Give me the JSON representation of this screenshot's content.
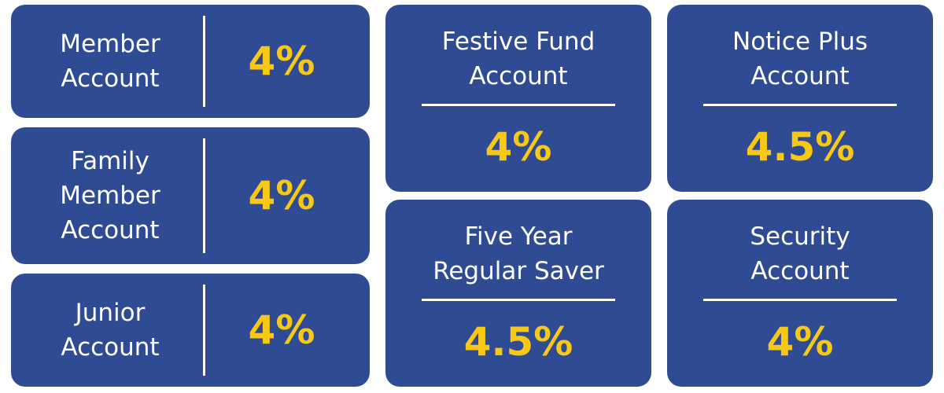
{
  "cards": [
    {
      "name": "Member Account",
      "rate": "4%"
    },
    {
      "name": "Family Member Account",
      "rate": "4%"
    },
    {
      "name": "Junior Account",
      "rate": "4%"
    },
    {
      "name": "Festive Fund Account",
      "rate": "4%"
    },
    {
      "name": "Notice Plus Account",
      "rate": "4.5%"
    },
    {
      "name": "Five Year Regular Saver",
      "rate": "4.5%"
    },
    {
      "name": "Security Account",
      "rate": "4%"
    }
  ]
}
